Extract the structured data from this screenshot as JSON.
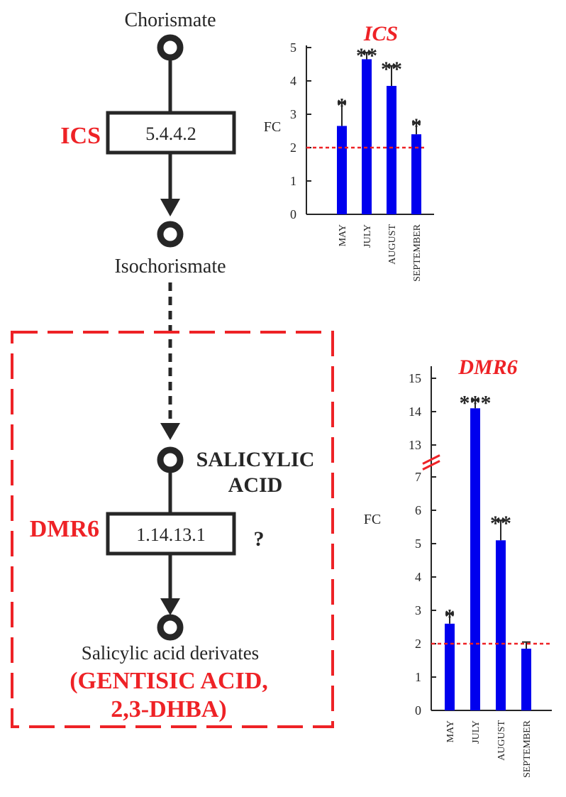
{
  "pathway": {
    "chorismate": "Chorismate",
    "isochorismate": "Isochorismate",
    "ics_enzyme": "ICS",
    "ics_ec": "5.4.4.2",
    "salicylic_line1": "SALICYLIC",
    "salicylic_line2": "ACID",
    "dmr6_enzyme": "DMR6",
    "dmr6_ec": "1.14.13.1",
    "question_mark": "?",
    "derivates": "Salicylic acid derivates",
    "derivates_examples_line1": "(GENTISIC ACID,",
    "derivates_examples_line2": "2,3-DHBA)"
  },
  "colors": {
    "bar": "#0000ee",
    "threshold": "#ee2226",
    "highlight": "#ee2226",
    "ink": "#262626"
  },
  "chart_data": [
    {
      "type": "bar",
      "title": "ICS",
      "ylabel": "FC",
      "categories": [
        "MAY",
        "JULY",
        "AUGUST",
        "SEPTEMBER"
      ],
      "values": [
        2.65,
        4.65,
        3.85,
        2.4
      ],
      "errors": [
        0.7,
        0.2,
        0.6,
        0.35
      ],
      "significance": [
        "*",
        "**",
        "**",
        "*"
      ],
      "yticks": [
        "0",
        "1",
        "2",
        "3",
        "4",
        "5"
      ],
      "ylim": [
        0,
        5
      ],
      "threshold": 2,
      "axis_break": false
    },
    {
      "type": "bar",
      "title": "DMR6",
      "ylabel": "FC",
      "categories": [
        "MAY",
        "JULY",
        "AUGUST",
        "SEPTEMBER"
      ],
      "values": [
        2.6,
        14.1,
        5.1,
        1.85
      ],
      "errors": [
        0.3,
        0.25,
        0.6,
        0.2
      ],
      "significance": [
        "*",
        "***",
        "**",
        ""
      ],
      "yticks": [
        "0",
        "1",
        "2",
        "3",
        "4",
        "5",
        "6",
        "7",
        "13",
        "14",
        "15"
      ],
      "ylim": [
        0,
        15
      ],
      "threshold": 2,
      "axis_break": true,
      "break_between": [
        7,
        13
      ]
    }
  ]
}
